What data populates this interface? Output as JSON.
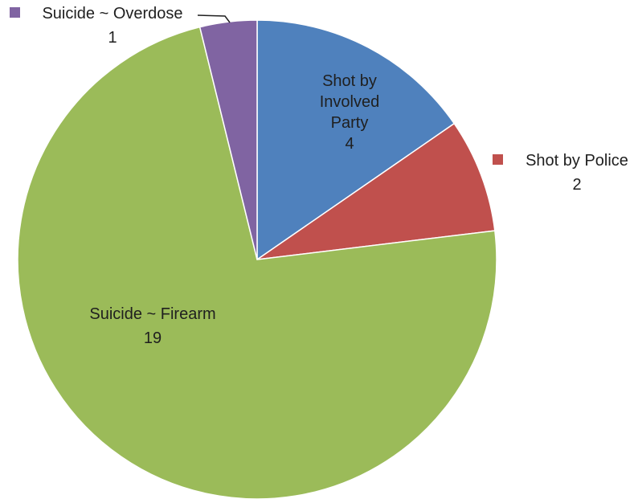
{
  "chart_data": {
    "type": "pie",
    "title": "",
    "categories": [
      "Shot by Involved Party",
      "Shot by Police",
      "Suicide ~ Firearm",
      "Suicide ~ Overdose"
    ],
    "values": [
      4,
      2,
      19,
      1
    ],
    "colors": [
      "#4f81bd",
      "#c0504d",
      "#9bbb59",
      "#8064a2"
    ],
    "labels": [
      {
        "lines": [
          "Shot by",
          "Involved",
          "Party"
        ],
        "value": "4"
      },
      {
        "lines": [
          "Shot by Police"
        ],
        "value": "2"
      },
      {
        "lines": [
          "Suicide ~ Firearm"
        ],
        "value": "19"
      },
      {
        "lines": [
          "Suicide ~ Overdose"
        ],
        "value": "1"
      }
    ],
    "start_angle_deg": 0,
    "direction": "clockwise",
    "legend": "none"
  }
}
